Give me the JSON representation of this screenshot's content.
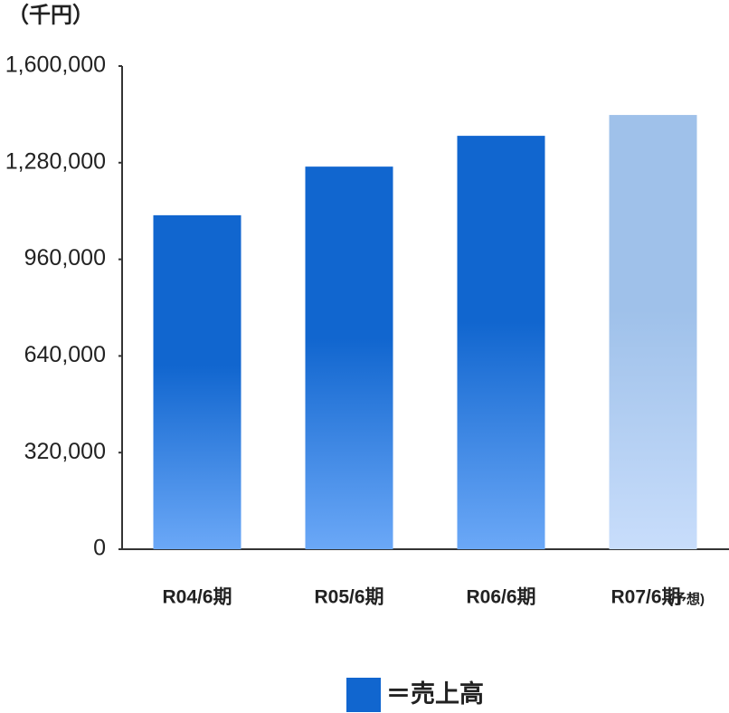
{
  "chart_data": {
    "type": "bar",
    "unit_label": "（千円）",
    "categories": [
      "R04/6期",
      "R05/6期",
      "R06/6期",
      "R07/6期"
    ],
    "category_note": "(予想)",
    "series": [
      {
        "name": "＝売上高",
        "color": "#1166cf",
        "values": [
          1106000,
          1267000,
          1369000,
          1438000
        ],
        "bar_colors": [
          "#1166cf",
          "#1166cf",
          "#1166cf",
          "#9fc1ea"
        ],
        "bar_gradient_end_colors": [
          "#6ba8f7",
          "#6ba8f7",
          "#6ba8f7",
          "#c8ddfb"
        ]
      }
    ],
    "ylim": [
      0,
      1600000
    ],
    "yticks": [
      0,
      {
        "value": 320000,
        "label": "320,000"
      },
      {
        "value": 640000,
        "label": "640,000"
      },
      {
        "value": 960000,
        "label": "960,000"
      },
      {
        "value": 1280000,
        "label": "1,280,000"
      },
      {
        "value": 1600000,
        "label": "1,600,000"
      }
    ],
    "grid": false
  }
}
